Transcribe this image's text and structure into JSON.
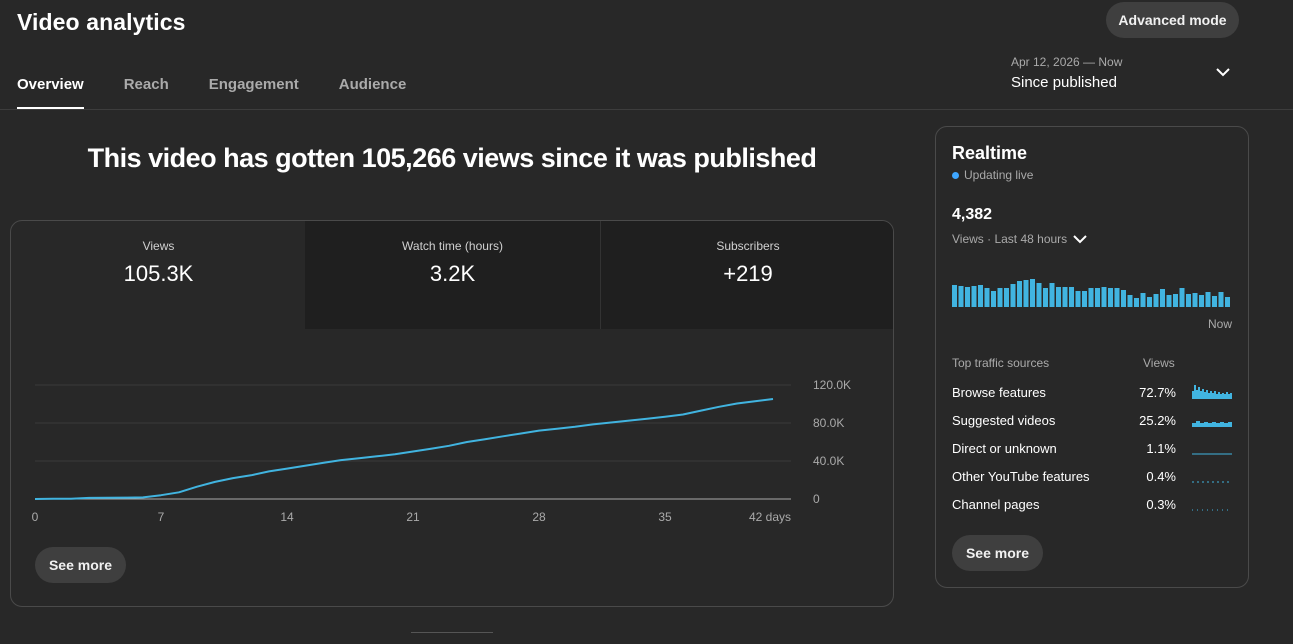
{
  "header": {
    "title": "Video analytics",
    "advanced_mode": "Advanced mode",
    "tabs": [
      "Overview",
      "Reach",
      "Engagement",
      "Audience"
    ],
    "date_range": {
      "range": "Apr 12, 2026 — Now",
      "label": "Since published"
    }
  },
  "headline": "This video has gotten 105,266 views since it was published",
  "metrics": [
    {
      "label": "Views",
      "value": "105.3K"
    },
    {
      "label": "Watch time (hours)",
      "value": "3.2K"
    },
    {
      "label": "Subscribers",
      "value": "+219"
    }
  ],
  "see_more": "See more",
  "chart_data": {
    "type": "line",
    "series": [
      {
        "values": [
          0,
          200,
          300,
          1200,
          1400,
          1500,
          1700,
          4000,
          7000,
          13000,
          18000,
          22000,
          25000,
          29000,
          32000,
          35000,
          38000,
          41000,
          43000,
          45000,
          47000,
          50000,
          53000,
          56000,
          60000,
          63000,
          66000,
          69000,
          72000,
          74000,
          76000,
          78500,
          80500,
          82500,
          84500,
          86500,
          89000,
          93000,
          97000,
          100500,
          103000,
          105266
        ]
      }
    ],
    "x": [
      0,
      1,
      2,
      3,
      4,
      5,
      6,
      7,
      8,
      9,
      10,
      11,
      12,
      13,
      14,
      15,
      16,
      17,
      18,
      19,
      20,
      21,
      22,
      23,
      24,
      25,
      26,
      27,
      28,
      29,
      30,
      31,
      32,
      33,
      34,
      35,
      36,
      37,
      38,
      39,
      40,
      41
    ],
    "xticks": [
      "0",
      "7",
      "14",
      "21",
      "28",
      "35",
      "42 days"
    ],
    "xtick_values": [
      0,
      7,
      14,
      21,
      28,
      35,
      42
    ],
    "yticks": [
      "0",
      "40.0K",
      "80.0K",
      "120.0K"
    ],
    "ytick_values": [
      0,
      40000,
      80000,
      120000
    ],
    "xlim": [
      0,
      42
    ],
    "ylim": [
      0,
      120000
    ],
    "grid": true,
    "color": "#41b4e0"
  },
  "realtime": {
    "title": "Realtime",
    "status": "Updating live",
    "count": "4,382",
    "period": "Views · Last 48 hours",
    "now_label": "Now",
    "bars": [
      22,
      21,
      20,
      21,
      22,
      19,
      16,
      19,
      19,
      23,
      26,
      27,
      28,
      24,
      19,
      24,
      20,
      20,
      20,
      16,
      16,
      19,
      19,
      20,
      19,
      19,
      17,
      12,
      9,
      14,
      10,
      13,
      18,
      12,
      13,
      19,
      13,
      14,
      12,
      15,
      11,
      15,
      10
    ],
    "traffic_header": "Top traffic sources",
    "traffic_views_header": "Views",
    "sources": [
      {
        "name": "Browse features",
        "pct": "72.7%"
      },
      {
        "name": "Suggested videos",
        "pct": "25.2%"
      },
      {
        "name": "Direct or unknown",
        "pct": "1.1%"
      },
      {
        "name": "Other YouTube features",
        "pct": "0.4%"
      },
      {
        "name": "Channel pages",
        "pct": "0.3%"
      }
    ],
    "see_more": "See more"
  },
  "colors": {
    "accent": "#41b4e0",
    "live_dot": "#3ea6ff",
    "background": "#282828"
  }
}
